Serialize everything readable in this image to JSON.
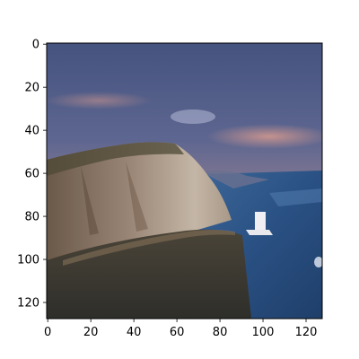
{
  "chart_data": {
    "type": "image",
    "title": "",
    "xlabel": "",
    "ylabel": "",
    "xlim": [
      0,
      127
    ],
    "ylim": [
      127,
      0
    ],
    "grid": false,
    "x_ticks": [
      "0",
      "20",
      "40",
      "60",
      "80",
      "100",
      "120"
    ],
    "y_ticks": [
      "0",
      "20",
      "40",
      "60",
      "80",
      "100",
      "120"
    ],
    "x_tick_values": [
      0,
      20,
      40,
      60,
      80,
      100,
      120
    ],
    "y_tick_values": [
      0,
      20,
      40,
      60,
      80,
      100,
      120
    ],
    "image_content": "coastal-cliff-at-dusk",
    "colors": {
      "sky_top": "#4a5a86",
      "sky_mid": "#6d6a8a",
      "sky_glow": "#b8848a",
      "sea": "#2f5a8c",
      "sea_light": "#4a7ab0",
      "cliff_light": "#b8a898",
      "cliff_mid": "#8a7260",
      "cliff_dark": "#4a3a30",
      "ground": "#3a3a34",
      "boat": "#e8e8ec"
    }
  }
}
